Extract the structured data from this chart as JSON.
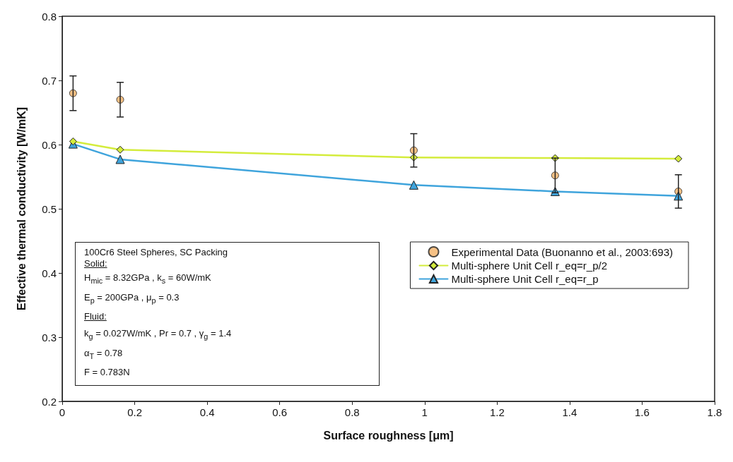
{
  "chart_data": {
    "type": "scatter",
    "xlabel": "Surface roughness [μm]",
    "ylabel": "Effective thermal conductivity [W/mK]",
    "xlim": [
      0,
      1.8
    ],
    "xticks": [
      0,
      0.2,
      0.4,
      0.6,
      0.8,
      1,
      1.2,
      1.4,
      1.6,
      1.8
    ],
    "ylim": [
      0.2,
      0.8
    ],
    "yticks": [
      0.2,
      0.3,
      0.4,
      0.5,
      0.6,
      0.7,
      0.8
    ],
    "grid": false,
    "legend": "right",
    "series": [
      {
        "name": "Experimental Data (Buonanno et al., 2003:693)",
        "marker": "circle",
        "color": "#f4b266",
        "x": [
          0.03,
          0.16,
          0.97,
          1.36,
          1.7
        ],
        "values": [
          0.68,
          0.67,
          0.591,
          0.552,
          0.527
        ],
        "errors": [
          0.027,
          0.027,
          0.026,
          0.027,
          0.026
        ]
      },
      {
        "name": "Multi-sphere Unit Cell r_eq=r_p/2",
        "type": "line",
        "marker": "diamond",
        "color": "#d4ec3c",
        "x": [
          0.03,
          0.16,
          0.97,
          1.36,
          1.7
        ],
        "values": [
          0.605,
          0.592,
          0.58,
          0.579,
          0.578
        ]
      },
      {
        "name": "Multi-sphere Unit Cell r_eq=r_p",
        "type": "line",
        "marker": "triangle",
        "color": "#3fa4dc",
        "x": [
          0.03,
          0.16,
          0.97,
          1.36,
          1.7
        ],
        "values": [
          0.601,
          0.577,
          0.537,
          0.527,
          0.52
        ]
      }
    ],
    "annotations": [
      "100Cr6 Steel Spheres, SC Packing",
      "Solid:",
      "H$_{mic}$ = 8.32GPa ,  k$_{s}$ = 60W/mK",
      "E$_{p}$ = 200GPa ,  μ$_{p}$ = 0.3",
      "Fluid:",
      "k$_{g}$ = 0.027W/mK ,  Pr = 0.7 ,  γ$_{g}$ = 1.4",
      "α$_{T}$ = 0.78",
      "F = 0.783N"
    ]
  }
}
